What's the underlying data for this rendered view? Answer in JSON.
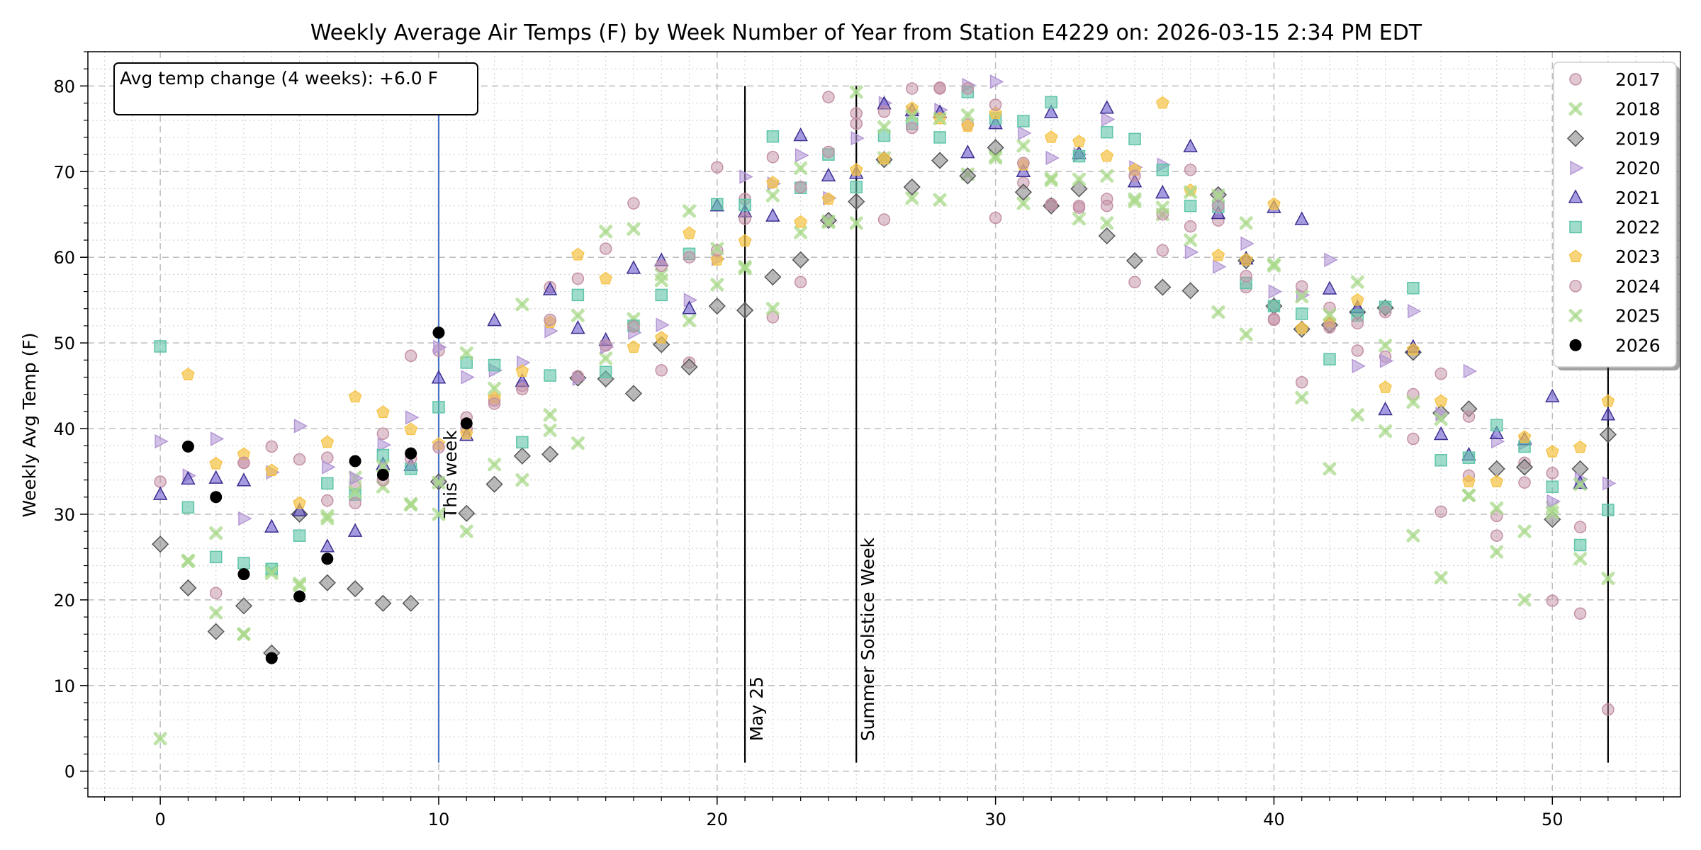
{
  "chart_data": {
    "type": "scatter",
    "title": "Weekly Average Air Temps (F) by Week Number of Year from Station E4229 on: 2026-03-15 2:34 PM EDT",
    "xlabel": "",
    "ylabel": "Weekly Avg Temp (F)",
    "xlim": [
      -2.6,
      54.6
    ],
    "ylim": [
      -3,
      84
    ],
    "xticks": [
      0,
      10,
      20,
      30,
      40,
      50
    ],
    "yticks": [
      0,
      10,
      20,
      30,
      40,
      50,
      60,
      70,
      80
    ],
    "grid": true,
    "legend_position": "top-right",
    "info_box": "Avg temp change (4 weeks): +6.0 F",
    "vlines": [
      {
        "x": 10,
        "y0": 1,
        "y1": 80,
        "label": "This week",
        "color": "#4472c4"
      },
      {
        "x": 21,
        "y0": 1,
        "y1": 80,
        "label": "May 25",
        "color": "#000000"
      },
      {
        "x": 25,
        "y0": 1,
        "y1": 80,
        "label": "Summer Solstice Week",
        "color": "#000000"
      },
      {
        "x": 52,
        "y0": 1,
        "y1": 48,
        "label": "",
        "color": "#000000"
      }
    ],
    "series": [
      {
        "name": "2017",
        "marker": "circle",
        "color": "#c490a6",
        "x": [
          0,
          2,
          3,
          4,
          5,
          6,
          7,
          8,
          9,
          10,
          11,
          12,
          13,
          14,
          15,
          16,
          17,
          18,
          19,
          20,
          21,
          22,
          23,
          24,
          25,
          26,
          27,
          28,
          29,
          30,
          31,
          32,
          33,
          34,
          35,
          36,
          37,
          38,
          39,
          40,
          41,
          42,
          43,
          44,
          45,
          46,
          47,
          48,
          49,
          50,
          51
        ],
        "y": [
          33.8,
          20.8,
          36,
          37.9,
          36.4,
          36.6,
          33.2,
          39.4,
          48.5,
          49.1,
          40,
          43.3,
          45,
          56.5,
          57.5,
          61,
          66.3,
          46.8,
          47.7,
          70.5,
          66.8,
          53,
          57.1,
          78.7,
          75.6,
          64.4,
          79.7,
          79.7,
          75.5,
          64.6,
          68.7,
          66.2,
          66,
          66.8,
          57.1,
          60.8,
          63.6,
          64.3,
          56.5,
          52.7,
          45.4,
          54.1,
          49.1,
          48.4,
          44,
          46.4,
          34.5,
          27.5,
          36,
          34.8,
          18.4
        ]
      },
      {
        "name": "2018",
        "marker": "x",
        "color": "#a9d98b",
        "x": [
          0,
          1,
          2,
          3,
          4,
          5,
          6,
          7,
          8,
          9,
          10,
          11,
          12,
          13,
          14,
          15,
          16,
          17,
          18,
          19,
          20,
          21,
          22,
          23,
          24,
          25,
          26,
          27,
          28,
          29,
          30,
          31,
          32,
          33,
          34,
          35,
          36,
          37,
          38,
          39,
          40,
          41,
          42,
          43,
          44,
          45,
          46,
          47,
          48,
          49,
          50,
          51
        ],
        "y": [
          3.8,
          24.6,
          27.8,
          16,
          23.4,
          21.9,
          29.5,
          34.3,
          33.2,
          31.1,
          30,
          28,
          35.8,
          34,
          41.6,
          38.3,
          48.2,
          52.8,
          58,
          52.6,
          56.8,
          58.9,
          54,
          62.9,
          64.2,
          64,
          71.6,
          66.9,
          66.7,
          69.7,
          71.8,
          66.3,
          69,
          64.5,
          64,
          66.5,
          65,
          62,
          53.6,
          51,
          59,
          43.6,
          35.3,
          41.6,
          39.7,
          27.5,
          22.6,
          32.2,
          25.6,
          20,
          30.8,
          24.8
        ]
      },
      {
        "name": "2019",
        "marker": "diamond",
        "color": "#8a8a8a",
        "x": [
          0,
          1,
          2,
          3,
          4,
          5,
          6,
          7,
          8,
          9,
          10,
          11,
          12,
          13,
          14,
          15,
          16,
          17,
          18,
          19,
          20,
          21,
          22,
          23,
          24,
          25,
          26,
          27,
          28,
          29,
          30,
          31,
          32,
          33,
          34,
          35,
          36,
          37,
          38,
          39,
          40,
          41,
          42,
          43,
          44,
          45,
          46,
          47,
          48,
          49,
          50,
          51,
          52
        ],
        "y": [
          26.5,
          21.4,
          16.3,
          19.3,
          13.8,
          30,
          22,
          21.3,
          19.6,
          19.6,
          33.8,
          30.1,
          33.5,
          36.8,
          37,
          45.9,
          45.8,
          44.1,
          49.8,
          47.2,
          54.3,
          53.8,
          57.7,
          59.7,
          64.3,
          66.5,
          71.4,
          68.2,
          71.3,
          69.5,
          72.8,
          67.6,
          66,
          68,
          62.5,
          59.6,
          56.5,
          56.1,
          67.3,
          59.6,
          54.3,
          51.6,
          52.1,
          53.6,
          54.1,
          48.9,
          41.8,
          42.3,
          35.3,
          35.5,
          29.4,
          35.3,
          39.3
        ]
      },
      {
        "name": "2020",
        "marker": "triangle-right",
        "color": "#b497d6",
        "x": [
          0,
          1,
          2,
          3,
          4,
          5,
          6,
          7,
          8,
          9,
          10,
          11,
          12,
          13,
          14,
          15,
          16,
          17,
          18,
          19,
          20,
          21,
          22,
          23,
          24,
          25,
          26,
          27,
          28,
          29,
          30,
          31,
          32,
          33,
          34,
          35,
          36,
          37,
          38,
          39,
          40,
          41,
          42,
          43,
          44,
          45,
          46,
          47,
          48,
          49,
          50,
          51,
          52
        ],
        "y": [
          38.5,
          34.5,
          38.8,
          29.5,
          34.9,
          40.3,
          35.5,
          34.2,
          38.1,
          41.3,
          49.5,
          46,
          46.8,
          47.7,
          51.4,
          45.8,
          49.5,
          51.2,
          52.1,
          55,
          59.8,
          69.4,
          68.6,
          71.9,
          66.9,
          73.9,
          78,
          76.8,
          77.2,
          80.1,
          80.5,
          74.5,
          71.6,
          72,
          76.1,
          70.5,
          70.8,
          60.6,
          58.9,
          61.6,
          56,
          55.6,
          59.7,
          47.3,
          47.9,
          53.7,
          41.7,
          46.7,
          38.5,
          38.3,
          31.5,
          34.1,
          33.6
        ]
      },
      {
        "name": "2021",
        "marker": "triangle-up",
        "color": "#6a5acd",
        "x": [
          0,
          1,
          2,
          3,
          4,
          5,
          6,
          7,
          8,
          9,
          10,
          11,
          12,
          13,
          14,
          15,
          16,
          17,
          18,
          19,
          20,
          21,
          22,
          23,
          24,
          25,
          26,
          27,
          28,
          29,
          30,
          31,
          32,
          33,
          34,
          35,
          36,
          37,
          38,
          39,
          40,
          41,
          42,
          43,
          44,
          45,
          46,
          47,
          48,
          49,
          50,
          51,
          52
        ],
        "y": [
          32.3,
          34.1,
          34.2,
          33.9,
          28.5,
          30.4,
          26.2,
          28,
          35.8,
          35.7,
          45.9,
          39.2,
          52.6,
          45.5,
          56.2,
          51.7,
          50.3,
          58.7,
          59.6,
          54,
          66,
          65.3,
          64.8,
          74.2,
          69.5,
          69.8,
          77.9,
          77.1,
          76.9,
          72.2,
          75.6,
          70,
          76.9,
          72.1,
          77.4,
          68.8,
          67.5,
          72.9,
          65.1,
          59.8,
          65.8,
          64.4,
          56.3,
          54.1,
          42.2,
          49.5,
          39.3,
          36.9,
          39.4,
          38.7,
          43.7,
          33.6,
          41.6
        ]
      },
      {
        "name": "2022",
        "marker": "square",
        "color": "#5fc4a8",
        "x": [
          0,
          1,
          2,
          3,
          4,
          5,
          6,
          7,
          8,
          9,
          10,
          11,
          12,
          13,
          14,
          15,
          16,
          17,
          18,
          19,
          20,
          21,
          22,
          23,
          24,
          25,
          26,
          27,
          28,
          29,
          30,
          31,
          32,
          33,
          34,
          35,
          36,
          37,
          38,
          39,
          40,
          41,
          42,
          43,
          44,
          45,
          46,
          47,
          48,
          49,
          50,
          51,
          52
        ],
        "y": [
          49.6,
          30.8,
          25,
          24.3,
          23.6,
          27.5,
          33.6,
          32.3,
          36.9,
          35.3,
          42.5,
          47.7,
          47.4,
          38.4,
          46.2,
          55.6,
          46.6,
          52,
          55.6,
          60.4,
          66.2,
          66.1,
          74.1,
          68.1,
          72,
          68.2,
          74.2,
          75.6,
          74,
          79.3,
          76.2,
          75.9,
          78.1,
          71.8,
          74.6,
          73.8,
          70.2,
          66,
          65.9,
          57,
          54.3,
          53.4,
          48.1,
          53.2,
          54.2,
          56.4,
          36.3,
          36.6,
          40.4,
          37.9,
          33.2,
          26.4,
          30.5
        ]
      },
      {
        "name": "2023",
        "marker": "pentagon",
        "color": "#f5c242",
        "x": [
          1,
          2,
          3,
          4,
          5,
          6,
          7,
          8,
          9,
          10,
          11,
          12,
          13,
          14,
          15,
          16,
          17,
          18,
          19,
          20,
          21,
          22,
          23,
          24,
          25,
          26,
          27,
          28,
          29,
          30,
          31,
          32,
          33,
          34,
          35,
          36,
          37,
          38,
          39,
          40,
          41,
          42,
          43,
          44,
          45,
          46,
          47,
          48,
          49,
          50,
          51,
          52
        ],
        "y": [
          46.3,
          35.9,
          37,
          35.1,
          31.3,
          38.4,
          43.7,
          41.9,
          39.9,
          38.2,
          39.4,
          43.6,
          46.7,
          52.4,
          60.3,
          57.5,
          49.5,
          50.6,
          62.8,
          59.7,
          61.9,
          68.7,
          64.1,
          66.8,
          70.2,
          71.5,
          77.4,
          76.2,
          75.3,
          76.8,
          70.8,
          74,
          73.5,
          71.8,
          70.2,
          78,
          67.8,
          60.2,
          59.7,
          66.2,
          51.7,
          52.5,
          55,
          44.8,
          49.2,
          43.2,
          33.8,
          33.8,
          39,
          37.3,
          37.8,
          43.2
        ]
      },
      {
        "name": "2024",
        "marker": "circle",
        "color": "#c490a6",
        "x": [
          3,
          6,
          7,
          8,
          9,
          10,
          11,
          12,
          13,
          14,
          15,
          16,
          17,
          18,
          19,
          20,
          21,
          22,
          23,
          24,
          25,
          26,
          27,
          28,
          29,
          30,
          31,
          32,
          33,
          34,
          35,
          36,
          37,
          38,
          39,
          40,
          41,
          42,
          43,
          44,
          45,
          46,
          47,
          48,
          49,
          50,
          51,
          52
        ],
        "y": [
          36,
          31.6,
          31.3,
          34,
          36.5,
          37.8,
          41.3,
          42.9,
          44.6,
          52.7,
          46.1,
          49.7,
          51.9,
          59,
          60,
          60.8,
          64.5,
          71.7,
          68.2,
          72.3,
          76.8,
          77,
          75.1,
          79.8,
          79.7,
          77.8,
          71,
          66.1,
          65.8,
          66,
          69.5,
          65,
          70.2,
          66,
          57.8,
          52.8,
          56.6,
          51.8,
          52.3,
          53.6,
          38.8,
          30.3,
          41.4,
          29.8,
          33.7,
          19.9,
          28.5,
          7.2
        ]
      },
      {
        "name": "2025",
        "marker": "x",
        "color": "#a9d98b",
        "x": [
          1,
          2,
          3,
          4,
          5,
          6,
          7,
          8,
          9,
          10,
          11,
          12,
          13,
          14,
          15,
          16,
          17,
          18,
          19,
          20,
          21,
          22,
          23,
          24,
          25,
          26,
          27,
          28,
          29,
          30,
          31,
          32,
          33,
          34,
          35,
          36,
          37,
          38,
          39,
          40,
          41,
          42,
          43,
          44,
          45,
          46,
          47,
          48,
          49,
          50,
          51,
          52
        ],
        "y": [
          24.5,
          18.5,
          16,
          23.1,
          21.7,
          29.8,
          32.6,
          35.6,
          31.2,
          33.7,
          48.8,
          44.7,
          54.5,
          39.8,
          53.2,
          63,
          63.3,
          57.3,
          65.4,
          61,
          58.7,
          67.2,
          70.4,
          64.1,
          79.3,
          75.2,
          76.5,
          76.2,
          76.6,
          71.6,
          73,
          69.2,
          69.1,
          69.5,
          66.8,
          65.8,
          67.6,
          67.2,
          64,
          59.2,
          55.4,
          53.3,
          57.1,
          49.7,
          43.1,
          41.1,
          32.2,
          30.7,
          28,
          30.2,
          33.5,
          22.5
        ]
      },
      {
        "name": "2026",
        "marker": "dot",
        "color": "#000000",
        "x": [
          1,
          2,
          3,
          4,
          5,
          6,
          7,
          8,
          9,
          10,
          11
        ],
        "y": [
          37.9,
          32,
          23,
          13.2,
          20.4,
          24.8,
          36.2,
          34.6,
          37.1,
          51.2,
          40.6
        ]
      }
    ]
  }
}
